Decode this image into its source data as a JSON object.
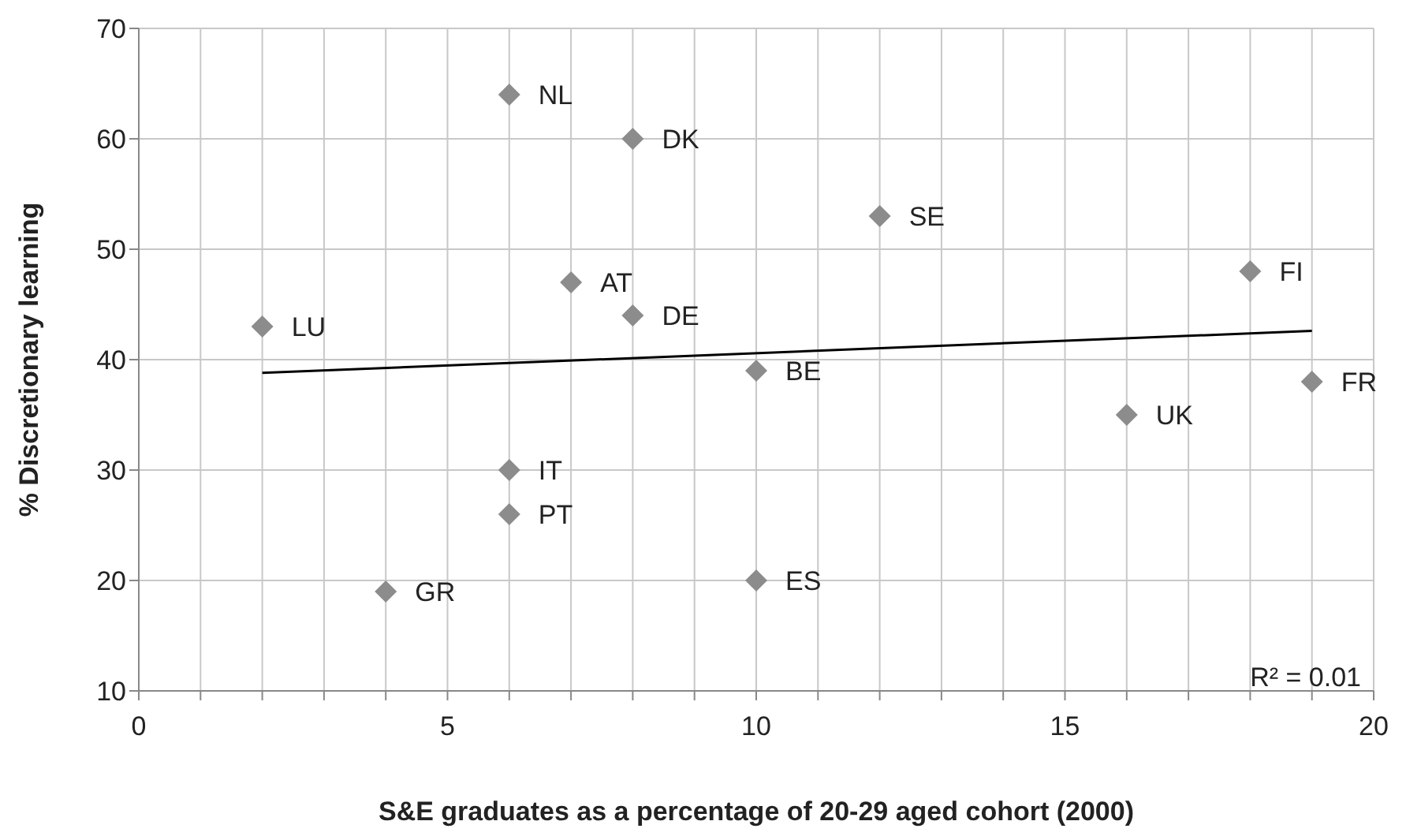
{
  "chart_data": {
    "type": "scatter",
    "xlabel": "S&E graduates as a percentage of 20-29 aged cohort (2000)",
    "ylabel": "% Discretionary learning",
    "xlim": [
      0,
      20
    ],
    "ylim": [
      10,
      70
    ],
    "xticks": [
      0,
      {
        "value": 1,
        "label": null
      },
      {
        "value": 2,
        "label": null
      },
      {
        "value": 3,
        "label": null
      },
      {
        "value": 4,
        "label": null
      },
      5,
      {
        "value": 6,
        "label": null
      },
      {
        "value": 7,
        "label": null
      },
      {
        "value": 8,
        "label": null
      },
      {
        "value": 9,
        "label": null
      },
      10,
      {
        "value": 11,
        "label": null
      },
      {
        "value": 12,
        "label": null
      },
      {
        "value": 13,
        "label": null
      },
      {
        "value": 14,
        "label": null
      },
      15,
      {
        "value": 16,
        "label": null
      },
      {
        "value": 17,
        "label": null
      },
      {
        "value": 18,
        "label": null
      },
      {
        "value": 19,
        "label": null
      },
      20
    ],
    "yticks": [
      10,
      20,
      30,
      40,
      50,
      60,
      70
    ],
    "grid": true,
    "legend": false,
    "series": [
      {
        "type": "scatter",
        "color": "#8c8c8c",
        "marker": "diamond",
        "x": [
          6,
          8,
          12,
          18,
          7,
          8,
          2,
          10,
          19,
          16,
          6,
          6,
          4,
          10
        ],
        "values": [
          64,
          60,
          53,
          48,
          47,
          44,
          43,
          39,
          38,
          35,
          30,
          26,
          19,
          20
        ],
        "value_labels": [
          "NL",
          "DK",
          "SE",
          "FI",
          "AT",
          "DE",
          "LU",
          "BE",
          "FR",
          "UK",
          "IT",
          "PT",
          "GR",
          "ES"
        ]
      },
      {
        "type": "line",
        "color": "#000000",
        "marker": "none",
        "x": [
          2,
          19
        ],
        "values": [
          38.8,
          42.6
        ]
      }
    ],
    "annotations": [
      "R² = 0.01"
    ]
  }
}
